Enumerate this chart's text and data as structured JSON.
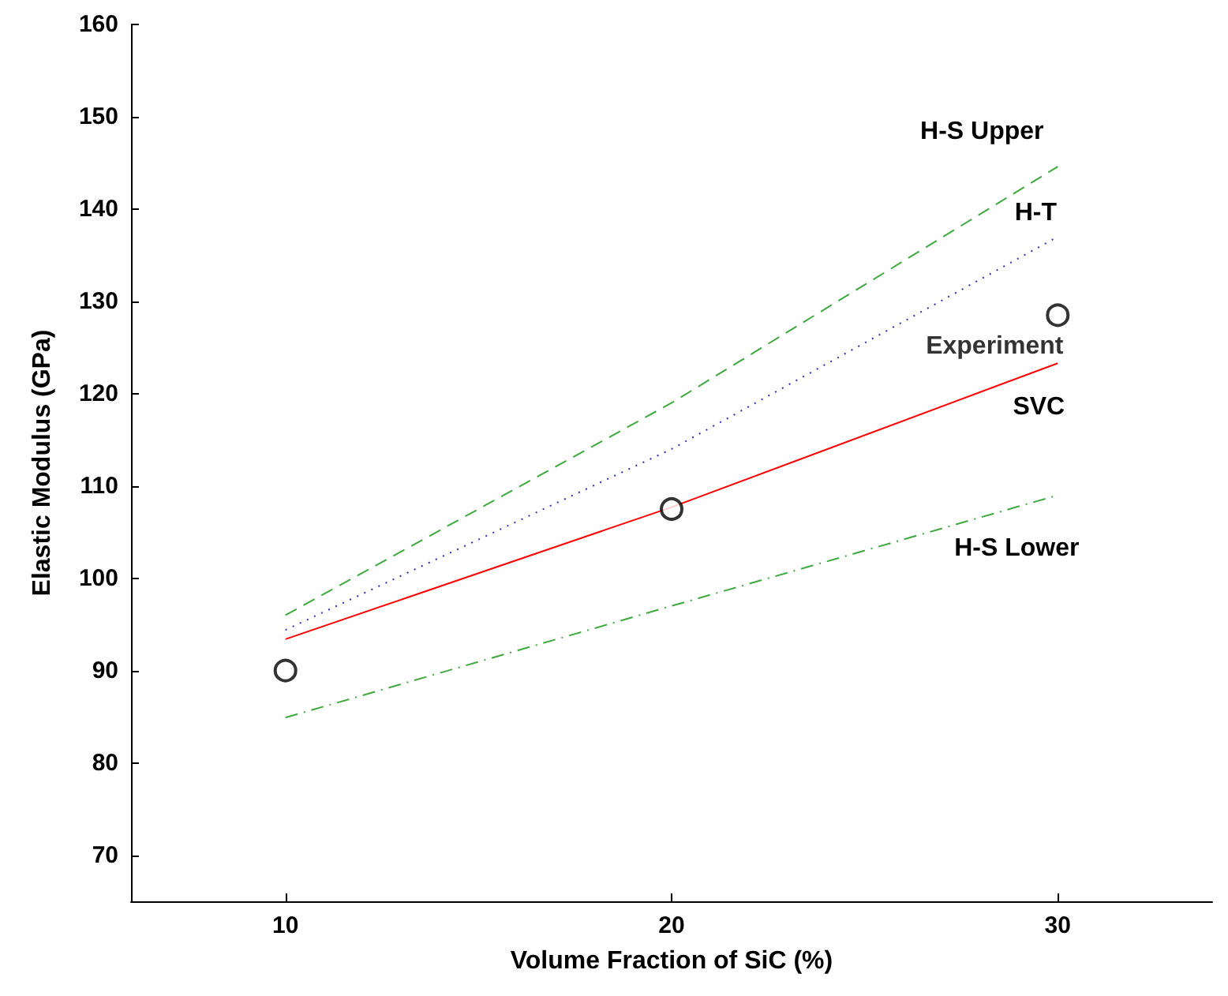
{
  "chart_data": {
    "type": "line",
    "xlabel": "Volume Fraction of SiC (%)",
    "ylabel": "Elastic Modulus (GPa)",
    "xlim": [
      6,
      34
    ],
    "ylim": [
      65,
      160
    ],
    "xticks": [
      10,
      20,
      30
    ],
    "yticks": [
      70,
      80,
      90,
      100,
      110,
      120,
      130,
      140,
      150,
      160
    ],
    "grid": false,
    "legend": false,
    "x": [
      10,
      20,
      30
    ],
    "series": [
      {
        "name": "H-S Upper",
        "color": "#3fa83f",
        "line_style": "dashed",
        "marker": "none",
        "values": [
          96,
          119,
          144.6
        ]
      },
      {
        "name": "H-T",
        "color": "#3030b0",
        "line_style": "dotted",
        "marker": "none",
        "values": [
          94.4,
          114,
          137
        ]
      },
      {
        "name": "SVC",
        "color": "#ff0000",
        "line_style": "solid",
        "marker": "none",
        "values": [
          93.4,
          107.7,
          123.3
        ]
      },
      {
        "name": "H-S Lower",
        "color": "#3fa83f",
        "line_style": "dashdot",
        "marker": "none",
        "values": [
          84.9,
          97,
          109
        ]
      },
      {
        "name": "Experiment",
        "type": "scatter",
        "color": "#000000",
        "marker": "circle",
        "values": [
          90,
          107.5,
          128.5
        ]
      }
    ]
  }
}
